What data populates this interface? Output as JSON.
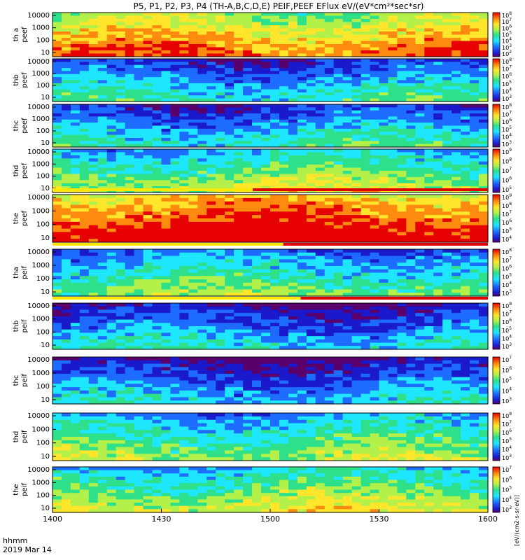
{
  "chart_data": {
    "type": "heatmap",
    "title": "P5, P1, P2, P3, P4 (TH-A,B,C,D,E) PEIF,PEEF EFlux eV/(eV*cm²*sec*sr)",
    "xlabel_lines": [
      "hhmm",
      "2019 Mar 14"
    ],
    "x_ticks": [
      "1400",
      "1430",
      "1500",
      "1530",
      "1600"
    ],
    "colorbar_label": "[eV/(cm2-s-sr-eV)]",
    "colorbar_tick_base": "10",
    "panels": [
      {
        "label": [
          "th a",
          "peef"
        ],
        "y_ticks": [
          "10000",
          "1000",
          "100",
          "10"
        ],
        "cb_exps": [
          "8",
          "7",
          "6",
          "5",
          "4",
          "3",
          "2"
        ],
        "flag_start": null
      },
      {
        "label": [
          "thb",
          "peef"
        ],
        "y_ticks": [
          "10000",
          "1000",
          "100",
          "10"
        ],
        "cb_exps": [
          "8",
          "7",
          "6",
          "5",
          "4",
          "3"
        ],
        "flag_start": null
      },
      {
        "label": [
          "thc",
          "peef"
        ],
        "y_ticks": [
          "10000",
          "1000",
          "100",
          "10"
        ],
        "cb_exps": [
          "8",
          "7",
          "6",
          "5",
          "4",
          "3"
        ],
        "flag_start": null
      },
      {
        "label": [
          "thd",
          "peef"
        ],
        "y_ticks": [
          "10000",
          "1000",
          "100",
          "10"
        ],
        "cb_exps": [
          "9",
          "8",
          "7",
          "6",
          "5"
        ],
        "flag_start": null
      },
      {
        "label": [
          "the",
          "peef"
        ],
        "y_ticks": [
          "10000",
          "1000",
          "100",
          "10"
        ],
        "cb_exps": [
          "9",
          "8",
          "7",
          "6",
          "5",
          "4"
        ],
        "flag_start": 0.46
      },
      {
        "label": [
          "tha",
          "peif"
        ],
        "y_ticks": [
          "10000",
          "1000",
          "100",
          "10"
        ],
        "cb_exps": [
          "8",
          "7",
          "6",
          "5",
          "4",
          "3"
        ],
        "flag_start": 0.53
      },
      {
        "label": [
          "thb",
          "peif"
        ],
        "y_ticks": [
          "10000",
          "1000",
          "100",
          "10"
        ],
        "cb_exps": [
          "8",
          "7",
          "6",
          "5",
          "4",
          "3"
        ],
        "flag_start": 0.57
      },
      {
        "label": [
          "thc",
          "peif"
        ],
        "y_ticks": [
          "10000",
          "1000",
          "100",
          "10"
        ],
        "cb_exps": [
          "7",
          "6",
          "5",
          "4",
          "3"
        ],
        "flag_start": null
      },
      {
        "label": [
          "thd",
          "peif"
        ],
        "y_ticks": [
          "10000",
          "1000",
          "100",
          "10"
        ],
        "cb_exps": [
          "8",
          "7",
          "6",
          "5",
          "4",
          "3"
        ],
        "flag_start": null
      },
      {
        "label": [
          "the",
          "peif"
        ],
        "y_ticks": [
          "10000",
          "1000",
          "100",
          "10"
        ],
        "cb_exps": [
          "7",
          "6",
          "5",
          "4",
          "3"
        ],
        "flag_start": null
      }
    ]
  }
}
